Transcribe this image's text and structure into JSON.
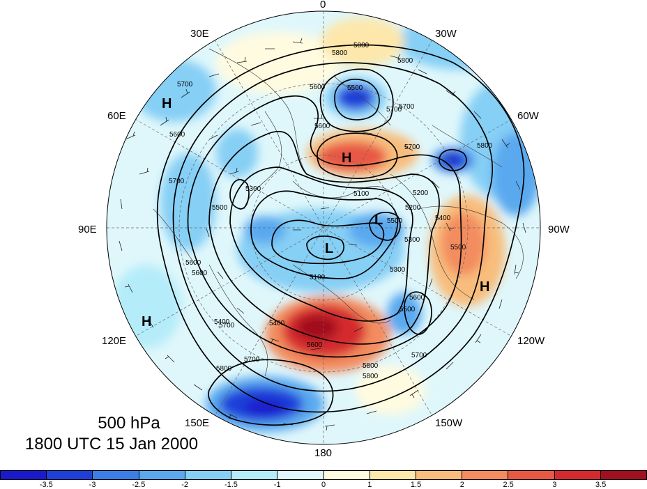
{
  "caption": {
    "level": "500 hPa",
    "time": "1800 UTC 15 Jan 2000"
  },
  "longitude_labels": [
    {
      "id": "lon-0",
      "text": "0"
    },
    {
      "id": "lon-30w",
      "text": "30W"
    },
    {
      "id": "lon-60w",
      "text": "60W"
    },
    {
      "id": "lon-90w",
      "text": "90W"
    },
    {
      "id": "lon-120w",
      "text": "120W"
    },
    {
      "id": "lon-150w",
      "text": "150W"
    },
    {
      "id": "lon-180",
      "text": "180"
    },
    {
      "id": "lon-150e",
      "text": "150E"
    },
    {
      "id": "lon-120e",
      "text": "120E"
    },
    {
      "id": "lon-90e",
      "text": "90E"
    },
    {
      "id": "lon-60e",
      "text": "60E"
    },
    {
      "id": "lon-30e",
      "text": "30E"
    }
  ],
  "pressure_centers": [
    {
      "id": "h-north",
      "text": "H"
    },
    {
      "id": "h-northwest",
      "text": "H"
    },
    {
      "id": "h-southwest",
      "text": "H"
    },
    {
      "id": "h-east",
      "text": "H"
    },
    {
      "id": "l-pole",
      "text": "L"
    },
    {
      "id": "l-pole-east",
      "text": "L"
    }
  ],
  "contour_labels": [
    "5800",
    "5800",
    "5700",
    "5600",
    "5500",
    "5700",
    "5600",
    "5700",
    "5800",
    "5600",
    "5700",
    "5500",
    "5300",
    "5100",
    "5200",
    "5300",
    "5400",
    "5500",
    "5600",
    "5700",
    "5800",
    "5600",
    "5700",
    "5800",
    "5100",
    "5400",
    "5600",
    "5700",
    "5800",
    "5300",
    "5500",
    "5700",
    "5800",
    "5600",
    "5500",
    "5400",
    "5200"
  ],
  "colorbar": {
    "colors": [
      "#1a1acc",
      "#1f3fd9",
      "#3b7fe6",
      "#5aa9ef",
      "#86cff5",
      "#b5ecfa",
      "#dff7fb",
      "#fffbe0",
      "#fde7ab",
      "#f8bd7d",
      "#f38c5e",
      "#e85845",
      "#d42a2f",
      "#a1101f"
    ],
    "ticks": [
      "-3.5",
      "-3",
      "-2.5",
      "-2",
      "-1.5",
      "-1",
      "0",
      "1",
      "1.5",
      "2",
      "2.5",
      "3",
      "3.5"
    ]
  }
}
